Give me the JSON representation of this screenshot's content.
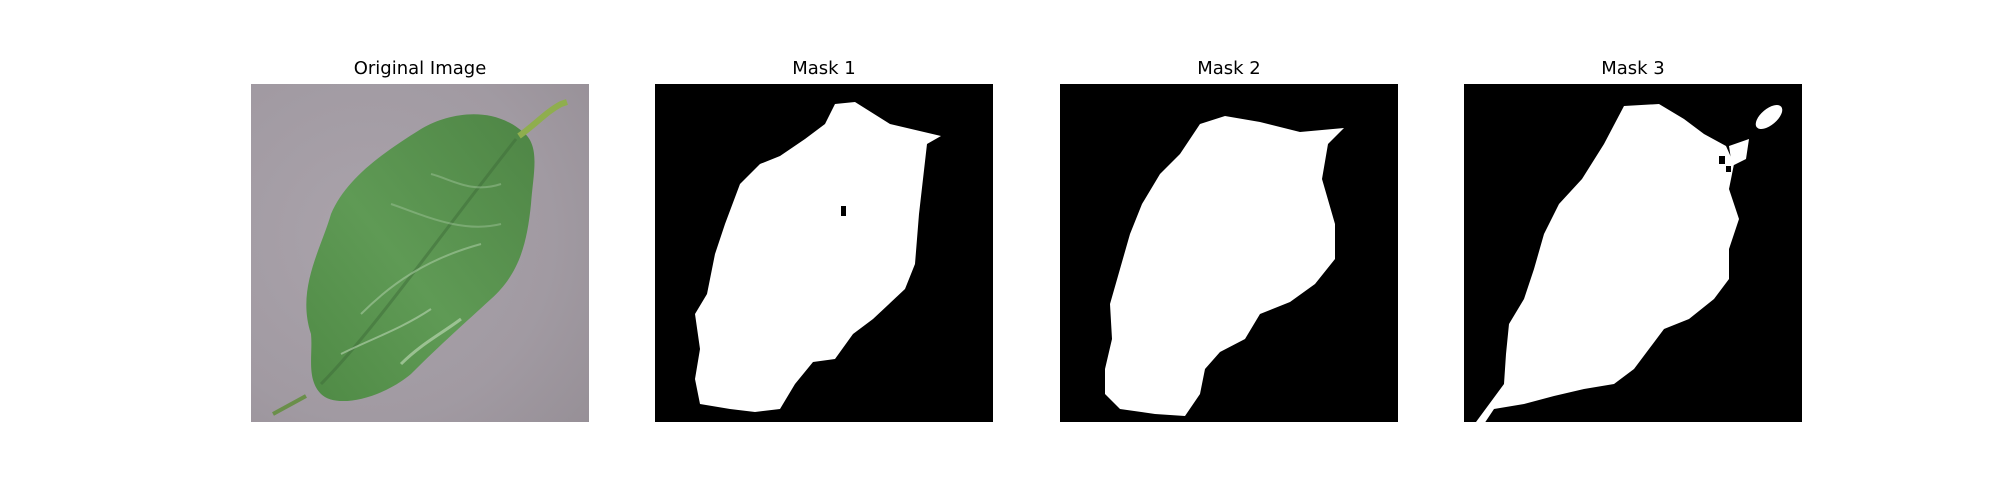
{
  "panels": [
    {
      "title": "Original Image"
    },
    {
      "title": "Mask 1"
    },
    {
      "title": "Mask 2"
    },
    {
      "title": "Mask 3"
    }
  ],
  "colors": {
    "background": "#ffffff",
    "mask_background": "#000000",
    "mask_foreground": "#ffffff",
    "leaf_green": "#5e9450",
    "surface_gray": "#a59ea5"
  }
}
